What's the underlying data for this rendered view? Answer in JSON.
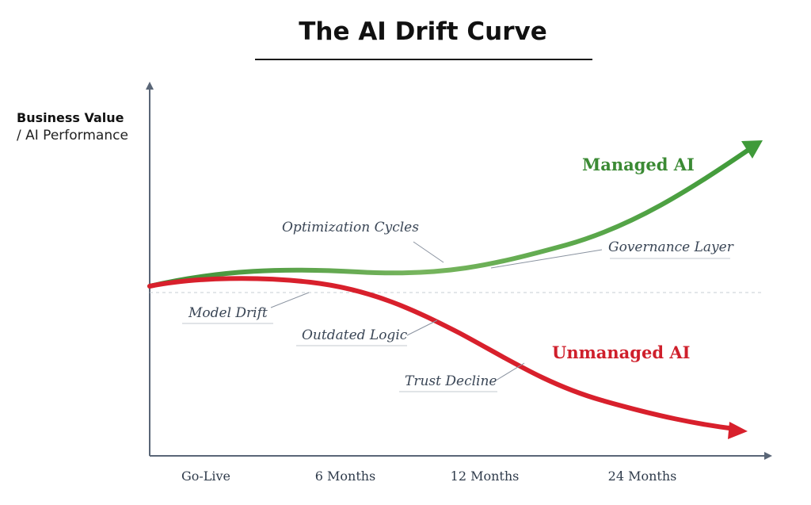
{
  "chart_data": {
    "type": "line",
    "title": "The AI Drift Curve",
    "ylabel_lines": [
      "Business Value",
      "/ AI Performance"
    ],
    "xlabel": "",
    "x_categories": [
      "Go-Live",
      "6 Months",
      "12 Months",
      "24 Months"
    ],
    "grid": false,
    "baseline": "dashed",
    "series": [
      {
        "name": "Managed AI",
        "color": "#3f9a39",
        "trend": "rising",
        "points": [
          [
            0,
            0
          ],
          [
            0.6,
            0.1
          ],
          [
            1.3,
            0.1
          ],
          [
            2,
            0.2
          ],
          [
            2.8,
            0.45
          ],
          [
            3.5,
            0.95
          ]
        ]
      },
      {
        "name": "Unmanaged AI",
        "color": "#d8202c",
        "trend": "declining",
        "points": [
          [
            0,
            0
          ],
          [
            0.5,
            0.05
          ],
          [
            1.2,
            0
          ],
          [
            2,
            -0.3
          ],
          [
            2.8,
            -0.6
          ],
          [
            3.5,
            -0.72
          ]
        ]
      }
    ],
    "annotations": [
      {
        "text": "Optimization Cycles",
        "series": "Managed AI"
      },
      {
        "text": "Governance Layer",
        "series": "Managed AI"
      },
      {
        "text": "Model Drift",
        "series": "Unmanaged AI"
      },
      {
        "text": "Outdated Logic",
        "series": "Unmanaged AI"
      },
      {
        "text": "Trust Decline",
        "series": "Unmanaged AI"
      }
    ]
  }
}
